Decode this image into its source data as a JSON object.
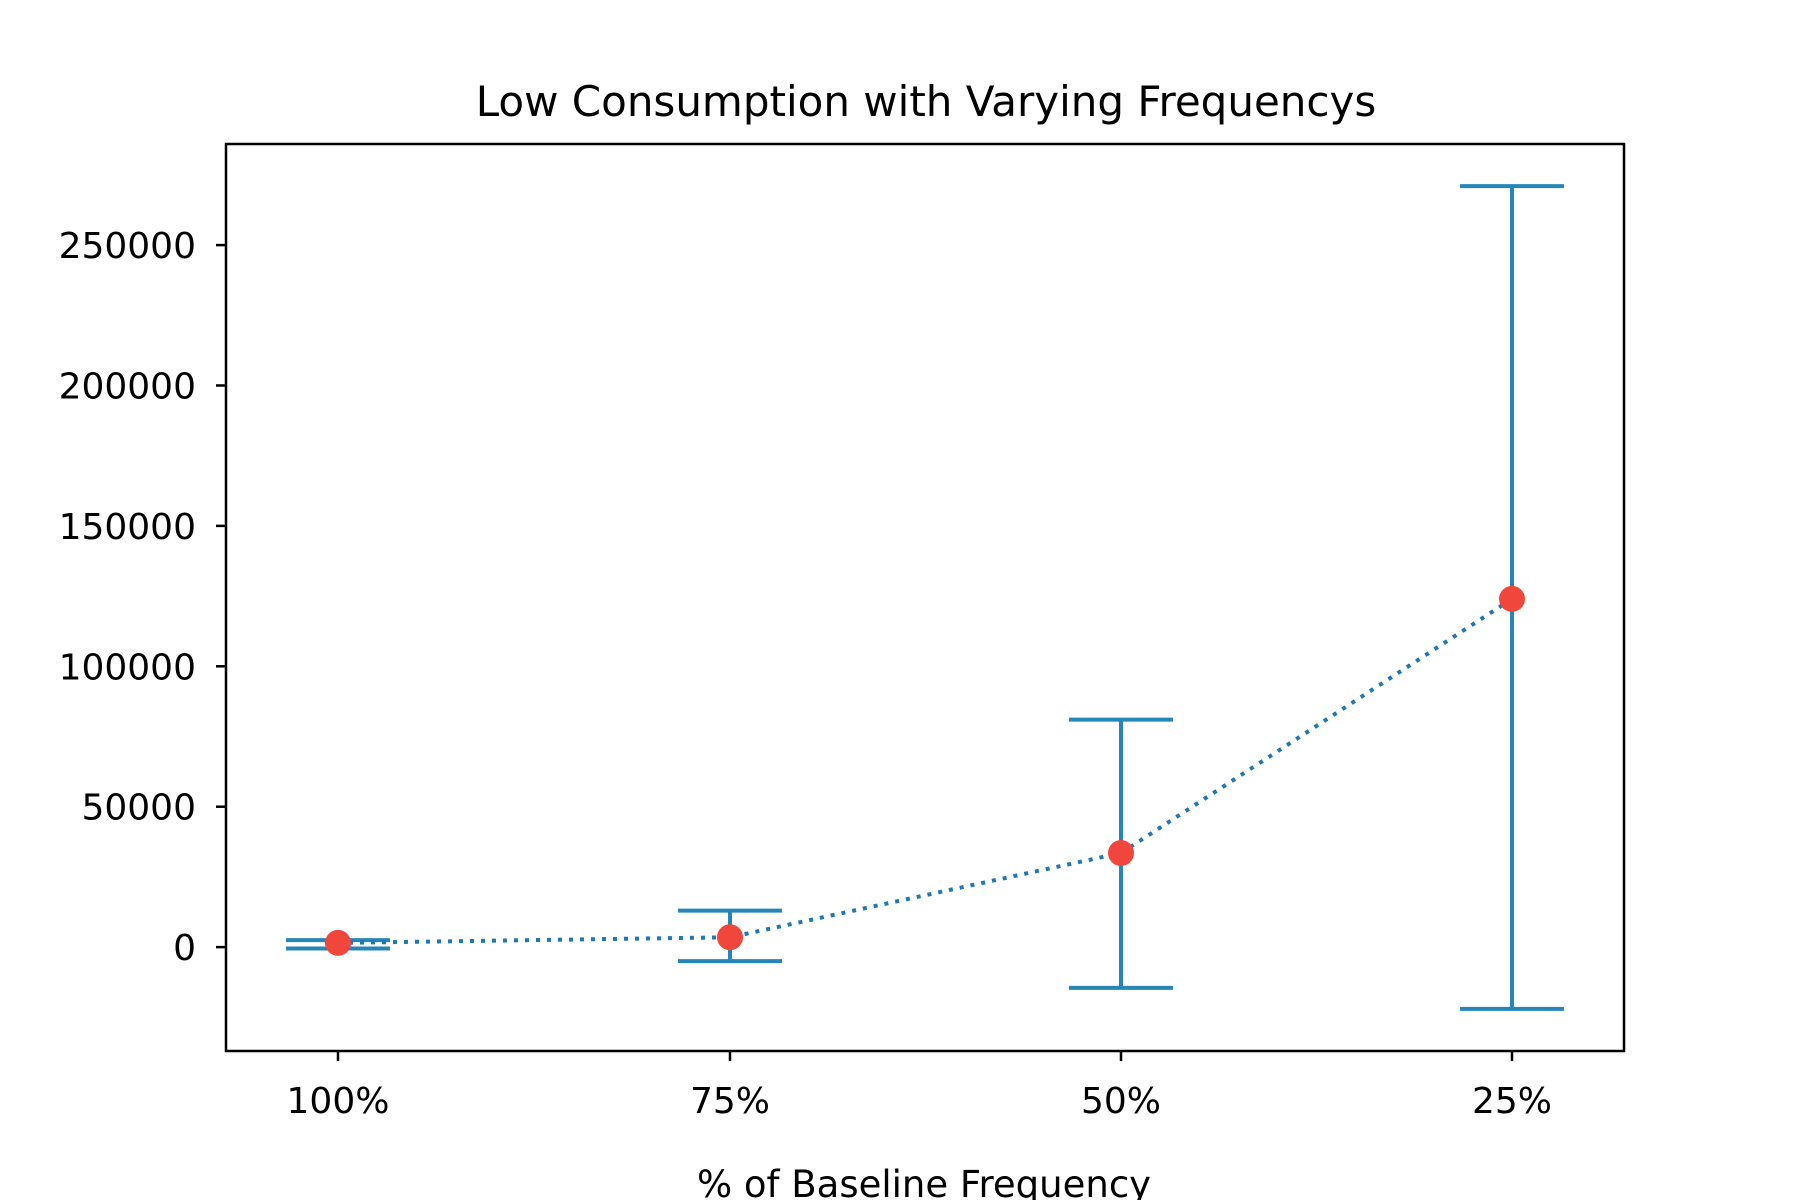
{
  "chart_data": {
    "type": "line",
    "title": "Low Consumption with Varying Frequencys",
    "xlabel": "% of Baseline Frequency",
    "ylabel": "",
    "categories": [
      "100%",
      "75%",
      "50%",
      "25%"
    ],
    "series": [
      {
        "values": [
          1500,
          3500,
          33500,
          124000
        ],
        "error_low": [
          -500,
          -5000,
          -14500,
          -22000
        ],
        "error_high": [
          2500,
          13000,
          81000,
          271000
        ]
      }
    ],
    "ylim": [
      -37000,
      286000
    ],
    "yticks": [
      0,
      50000,
      100000,
      150000,
      200000,
      250000
    ],
    "ytick_labels": [
      "0",
      "50000",
      "100000",
      "150000",
      "200000",
      "250000"
    ],
    "grid": false,
    "legend": "none",
    "colors": {
      "errorbar": "#2686b9",
      "line": "#1f77b4",
      "marker": "#f0463c",
      "axes": "#000000"
    }
  }
}
